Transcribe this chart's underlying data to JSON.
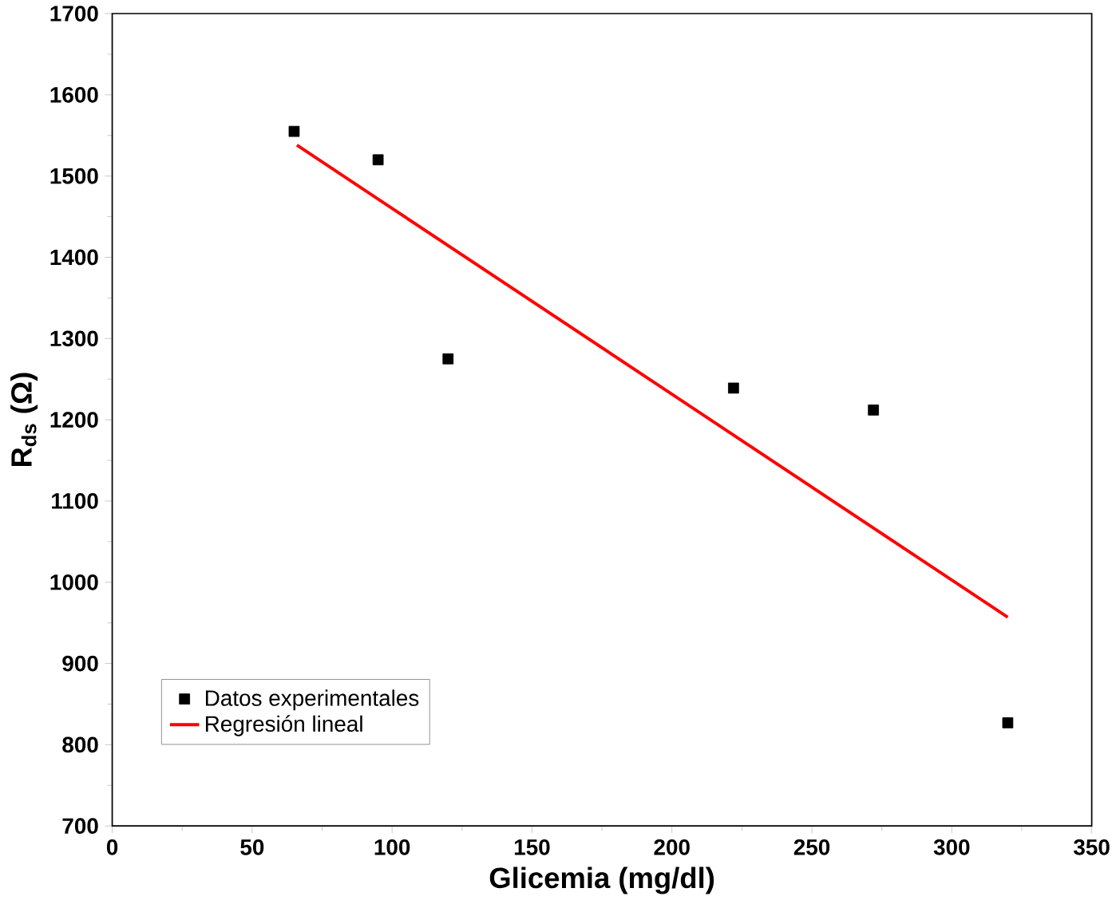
{
  "chart_data": {
    "type": "scatter",
    "xlabel": "Glicemia (mg/dl)",
    "ylabel": "R$_{ds}$ (Ω)",
    "xlim": [
      0,
      350
    ],
    "ylim": [
      700,
      1700
    ],
    "xticks": [
      0,
      50,
      100,
      150,
      200,
      250,
      300,
      350
    ],
    "yticks": [
      700,
      800,
      900,
      1000,
      1100,
      1200,
      1300,
      1400,
      1500,
      1600,
      1700
    ],
    "legend": "bottom left",
    "grid": false,
    "series": [
      {
        "name": "Datos experimentales",
        "marker": "square",
        "color": "#000000",
        "x": [
          65,
          95,
          120,
          222,
          272,
          320
        ],
        "values": [
          1555,
          1520,
          1275,
          1239,
          1212,
          827
        ]
      },
      {
        "name": "Regresión lineal",
        "type": "line",
        "marker": "none",
        "line_style": "solid",
        "color": "#ff0000",
        "x": [
          66,
          320
        ],
        "values": [
          1538,
          957
        ]
      }
    ]
  }
}
